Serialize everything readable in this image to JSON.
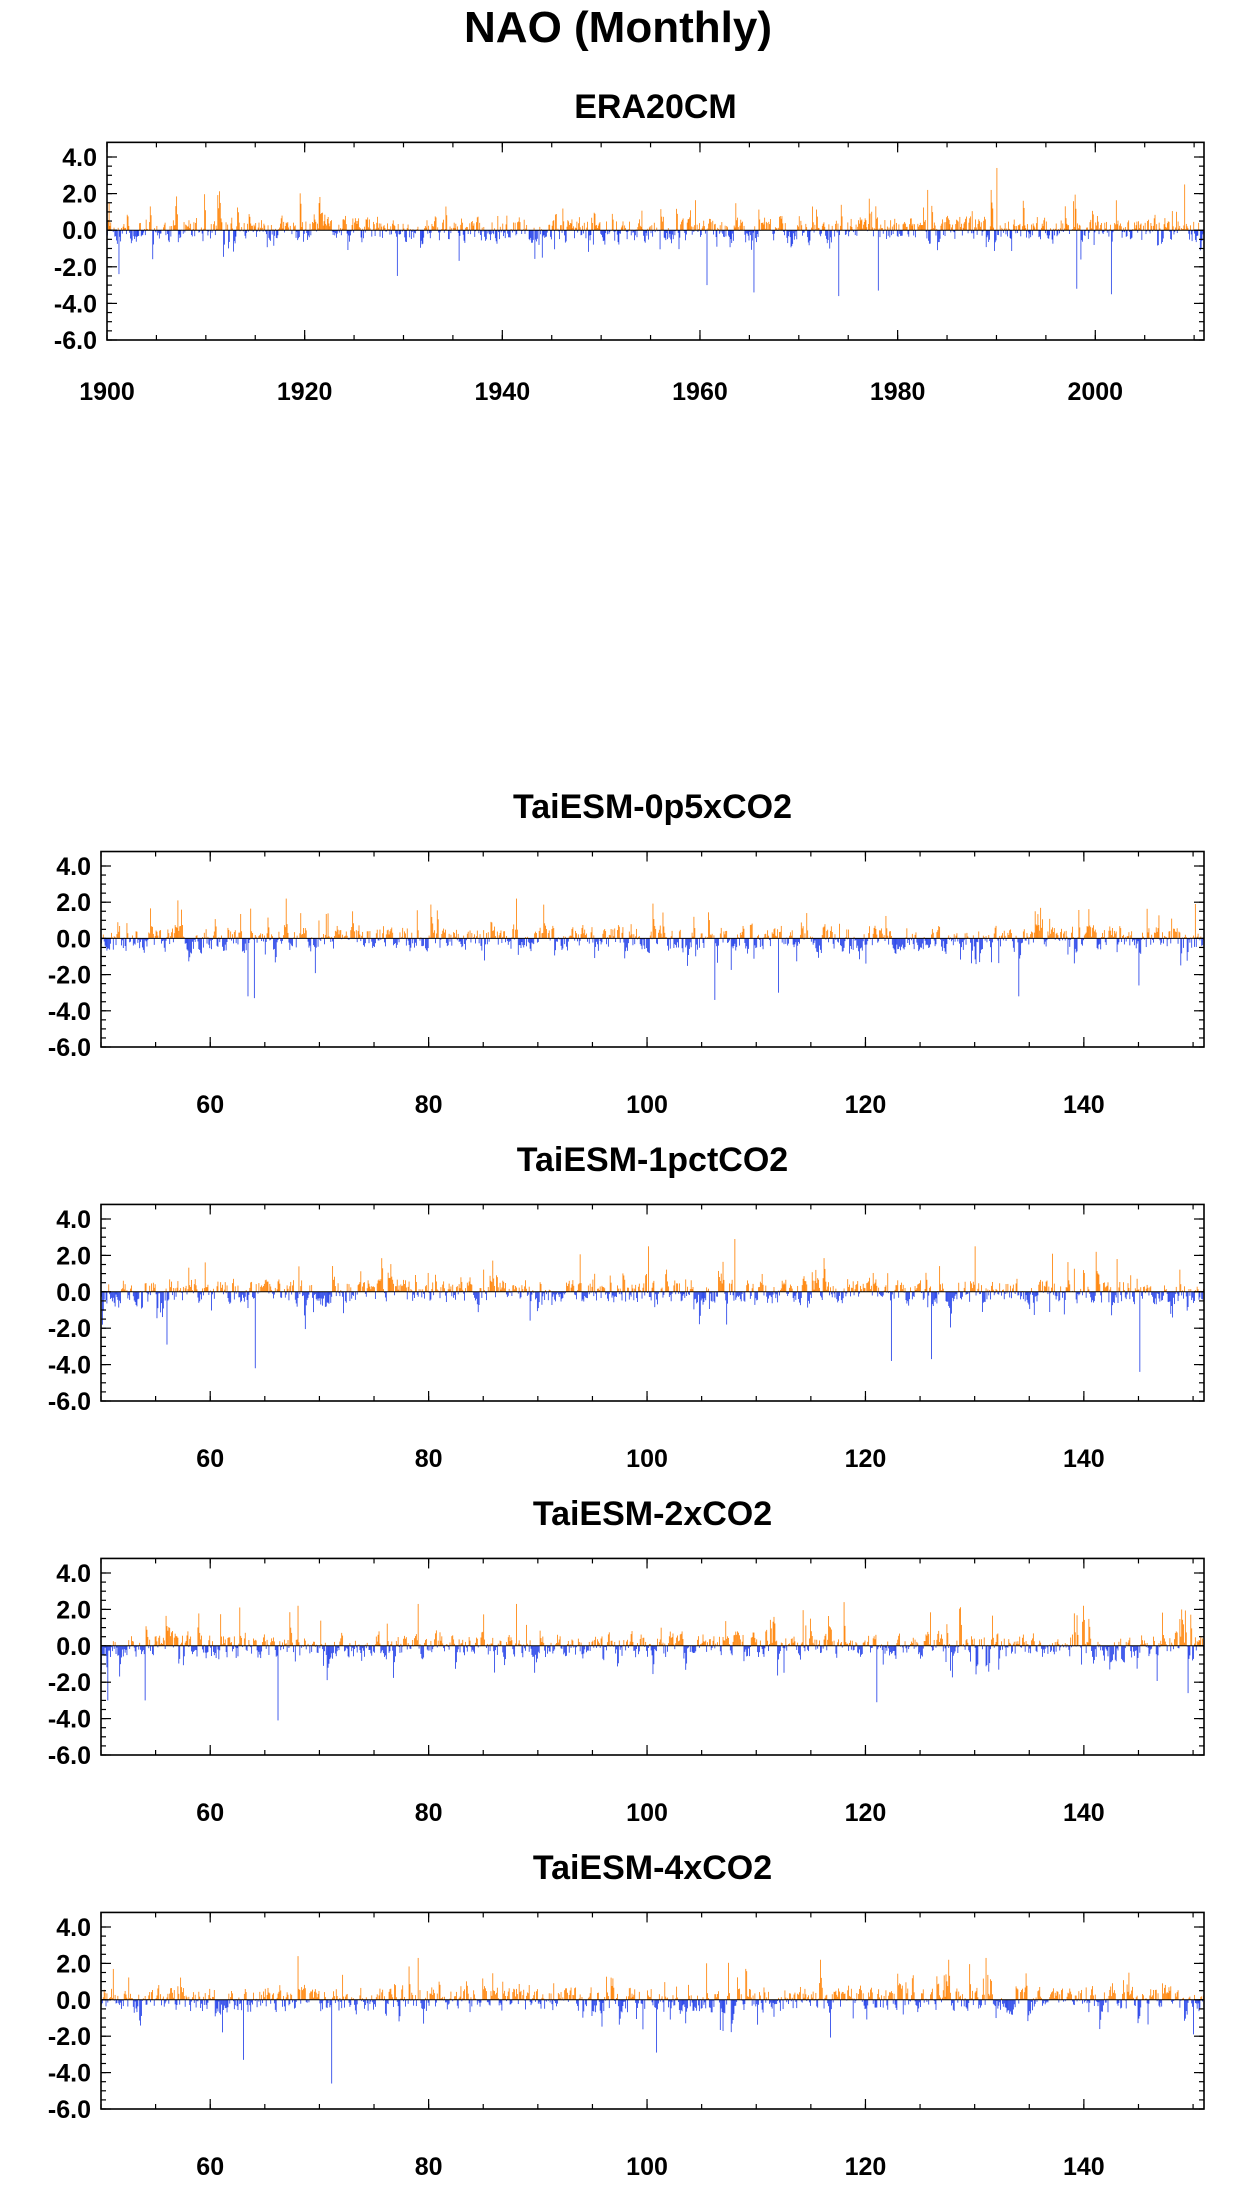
{
  "figure": {
    "title": "NAO (Monthly)"
  },
  "colors": {
    "positive": "#ff8000",
    "negative": "#1f3de8",
    "axis": "#000000"
  },
  "chart_data": [
    {
      "type": "bar",
      "title": "ERA20CM",
      "x_range": [
        1900,
        2011
      ],
      "x_ticks": [
        1900,
        1920,
        1940,
        1960,
        1980,
        2000
      ],
      "x_tick_labels": [
        "1900",
        "1920",
        "1940",
        "1960",
        "1980",
        "2000"
      ],
      "y_range": [
        -6.0,
        4.0
      ],
      "y_ticks": [
        4.0,
        2.0,
        0.0,
        -2.0,
        -4.0,
        -6.0
      ],
      "y_tick_labels": [
        "4.0",
        "2.0",
        "0.0",
        "-2.0",
        "-4.0",
        "-6.0"
      ],
      "resolution": "monthly",
      "x_start": 1900,
      "seed": 11,
      "notable_values": [
        {
          "x": 1901.2,
          "y": -2.4
        },
        {
          "x": 1929.3,
          "y": -2.5
        },
        {
          "x": 1960.7,
          "y": -3.0
        },
        {
          "x": 1965.4,
          "y": -3.4
        },
        {
          "x": 1974.0,
          "y": -3.6
        },
        {
          "x": 1978.0,
          "y": -3.3
        },
        {
          "x": 1983.0,
          "y": 2.2
        },
        {
          "x": 1990.0,
          "y": 3.4
        },
        {
          "x": 1998.1,
          "y": -3.2
        },
        {
          "x": 2001.6,
          "y": -3.5
        },
        {
          "x": 2009.0,
          "y": 2.5
        }
      ]
    },
    {
      "type": "bar",
      "title": "TaiESM-0p5xCO2",
      "x_range": [
        50,
        151
      ],
      "x_ticks": [
        60,
        80,
        100,
        120,
        140
      ],
      "x_tick_labels": [
        "60",
        "80",
        "100",
        "120",
        "140"
      ],
      "y_range": [
        -6.0,
        4.0
      ],
      "y_ticks": [
        4.0,
        2.0,
        0.0,
        -2.0,
        -4.0,
        -6.0
      ],
      "y_tick_labels": [
        "4.0",
        "2.0",
        "0.0",
        "-2.0",
        "-4.0",
        "-6.0"
      ],
      "resolution": "monthly",
      "x_start": 50,
      "seed": 23,
      "notable_values": [
        {
          "x": 57.0,
          "y": 2.1
        },
        {
          "x": 63.4,
          "y": -3.2
        },
        {
          "x": 64.0,
          "y": -3.3
        },
        {
          "x": 88.0,
          "y": 2.2
        },
        {
          "x": 106.2,
          "y": -3.4
        },
        {
          "x": 112.0,
          "y": -3.0
        },
        {
          "x": 134.0,
          "y": -3.2
        },
        {
          "x": 145.0,
          "y": -2.6
        },
        {
          "x": 150.2,
          "y": 1.9
        }
      ]
    },
    {
      "type": "bar",
      "title": "TaiESM-1pctCO2",
      "x_range": [
        50,
        151
      ],
      "x_ticks": [
        60,
        80,
        100,
        120,
        140
      ],
      "x_tick_labels": [
        "60",
        "80",
        "100",
        "120",
        "140"
      ],
      "y_range": [
        -6.0,
        4.0
      ],
      "y_ticks": [
        4.0,
        2.0,
        0.0,
        -2.0,
        -4.0,
        -6.0
      ],
      "y_tick_labels": [
        "4.0",
        "2.0",
        "0.0",
        "-2.0",
        "-4.0",
        "-6.0"
      ],
      "resolution": "monthly",
      "x_start": 50,
      "seed": 37,
      "notable_values": [
        {
          "x": 56.0,
          "y": -2.9
        },
        {
          "x": 64.1,
          "y": -4.2
        },
        {
          "x": 100.1,
          "y": 2.5
        },
        {
          "x": 108.0,
          "y": 2.9
        },
        {
          "x": 122.3,
          "y": -3.8
        },
        {
          "x": 126.0,
          "y": -3.7
        },
        {
          "x": 130.0,
          "y": 2.5
        },
        {
          "x": 145.1,
          "y": -4.4
        }
      ]
    },
    {
      "type": "bar",
      "title": "TaiESM-2xCO2",
      "x_range": [
        50,
        151
      ],
      "x_ticks": [
        60,
        80,
        100,
        120,
        140
      ],
      "x_tick_labels": [
        "60",
        "80",
        "100",
        "120",
        "140"
      ],
      "y_range": [
        -6.0,
        4.0
      ],
      "y_ticks": [
        4.0,
        2.0,
        0.0,
        -2.0,
        -4.0,
        -6.0
      ],
      "y_tick_labels": [
        "4.0",
        "2.0",
        "0.0",
        "-2.0",
        "-4.0",
        "-6.0"
      ],
      "resolution": "monthly",
      "x_start": 50,
      "seed": 53,
      "notable_values": [
        {
          "x": 50.6,
          "y": -3.0
        },
        {
          "x": 54.0,
          "y": -3.0
        },
        {
          "x": 66.2,
          "y": -4.1
        },
        {
          "x": 68.0,
          "y": 2.2
        },
        {
          "x": 79.0,
          "y": 2.3
        },
        {
          "x": 88.0,
          "y": 2.3
        },
        {
          "x": 118.0,
          "y": 2.4
        },
        {
          "x": 121.0,
          "y": -3.1
        },
        {
          "x": 149.5,
          "y": -2.6
        }
      ]
    },
    {
      "type": "bar",
      "title": "TaiESM-4xCO2",
      "x_range": [
        50,
        151
      ],
      "x_ticks": [
        60,
        80,
        100,
        120,
        140
      ],
      "x_tick_labels": [
        "60",
        "80",
        "100",
        "120",
        "140"
      ],
      "y_range": [
        -6.0,
        4.0
      ],
      "y_ticks": [
        4.0,
        2.0,
        0.0,
        -2.0,
        -4.0,
        -6.0
      ],
      "y_tick_labels": [
        "4.0",
        "2.0",
        "0.0",
        "-2.0",
        "-4.0",
        "-6.0"
      ],
      "resolution": "monthly",
      "x_start": 50,
      "seed": 71,
      "notable_values": [
        {
          "x": 63.0,
          "y": -3.3
        },
        {
          "x": 68.0,
          "y": 2.4
        },
        {
          "x": 71.1,
          "y": -4.6
        },
        {
          "x": 79.0,
          "y": 2.3
        },
        {
          "x": 100.8,
          "y": -2.9
        },
        {
          "x": 131.0,
          "y": 2.3
        },
        {
          "x": 150.0,
          "y": -1.9
        }
      ]
    }
  ]
}
